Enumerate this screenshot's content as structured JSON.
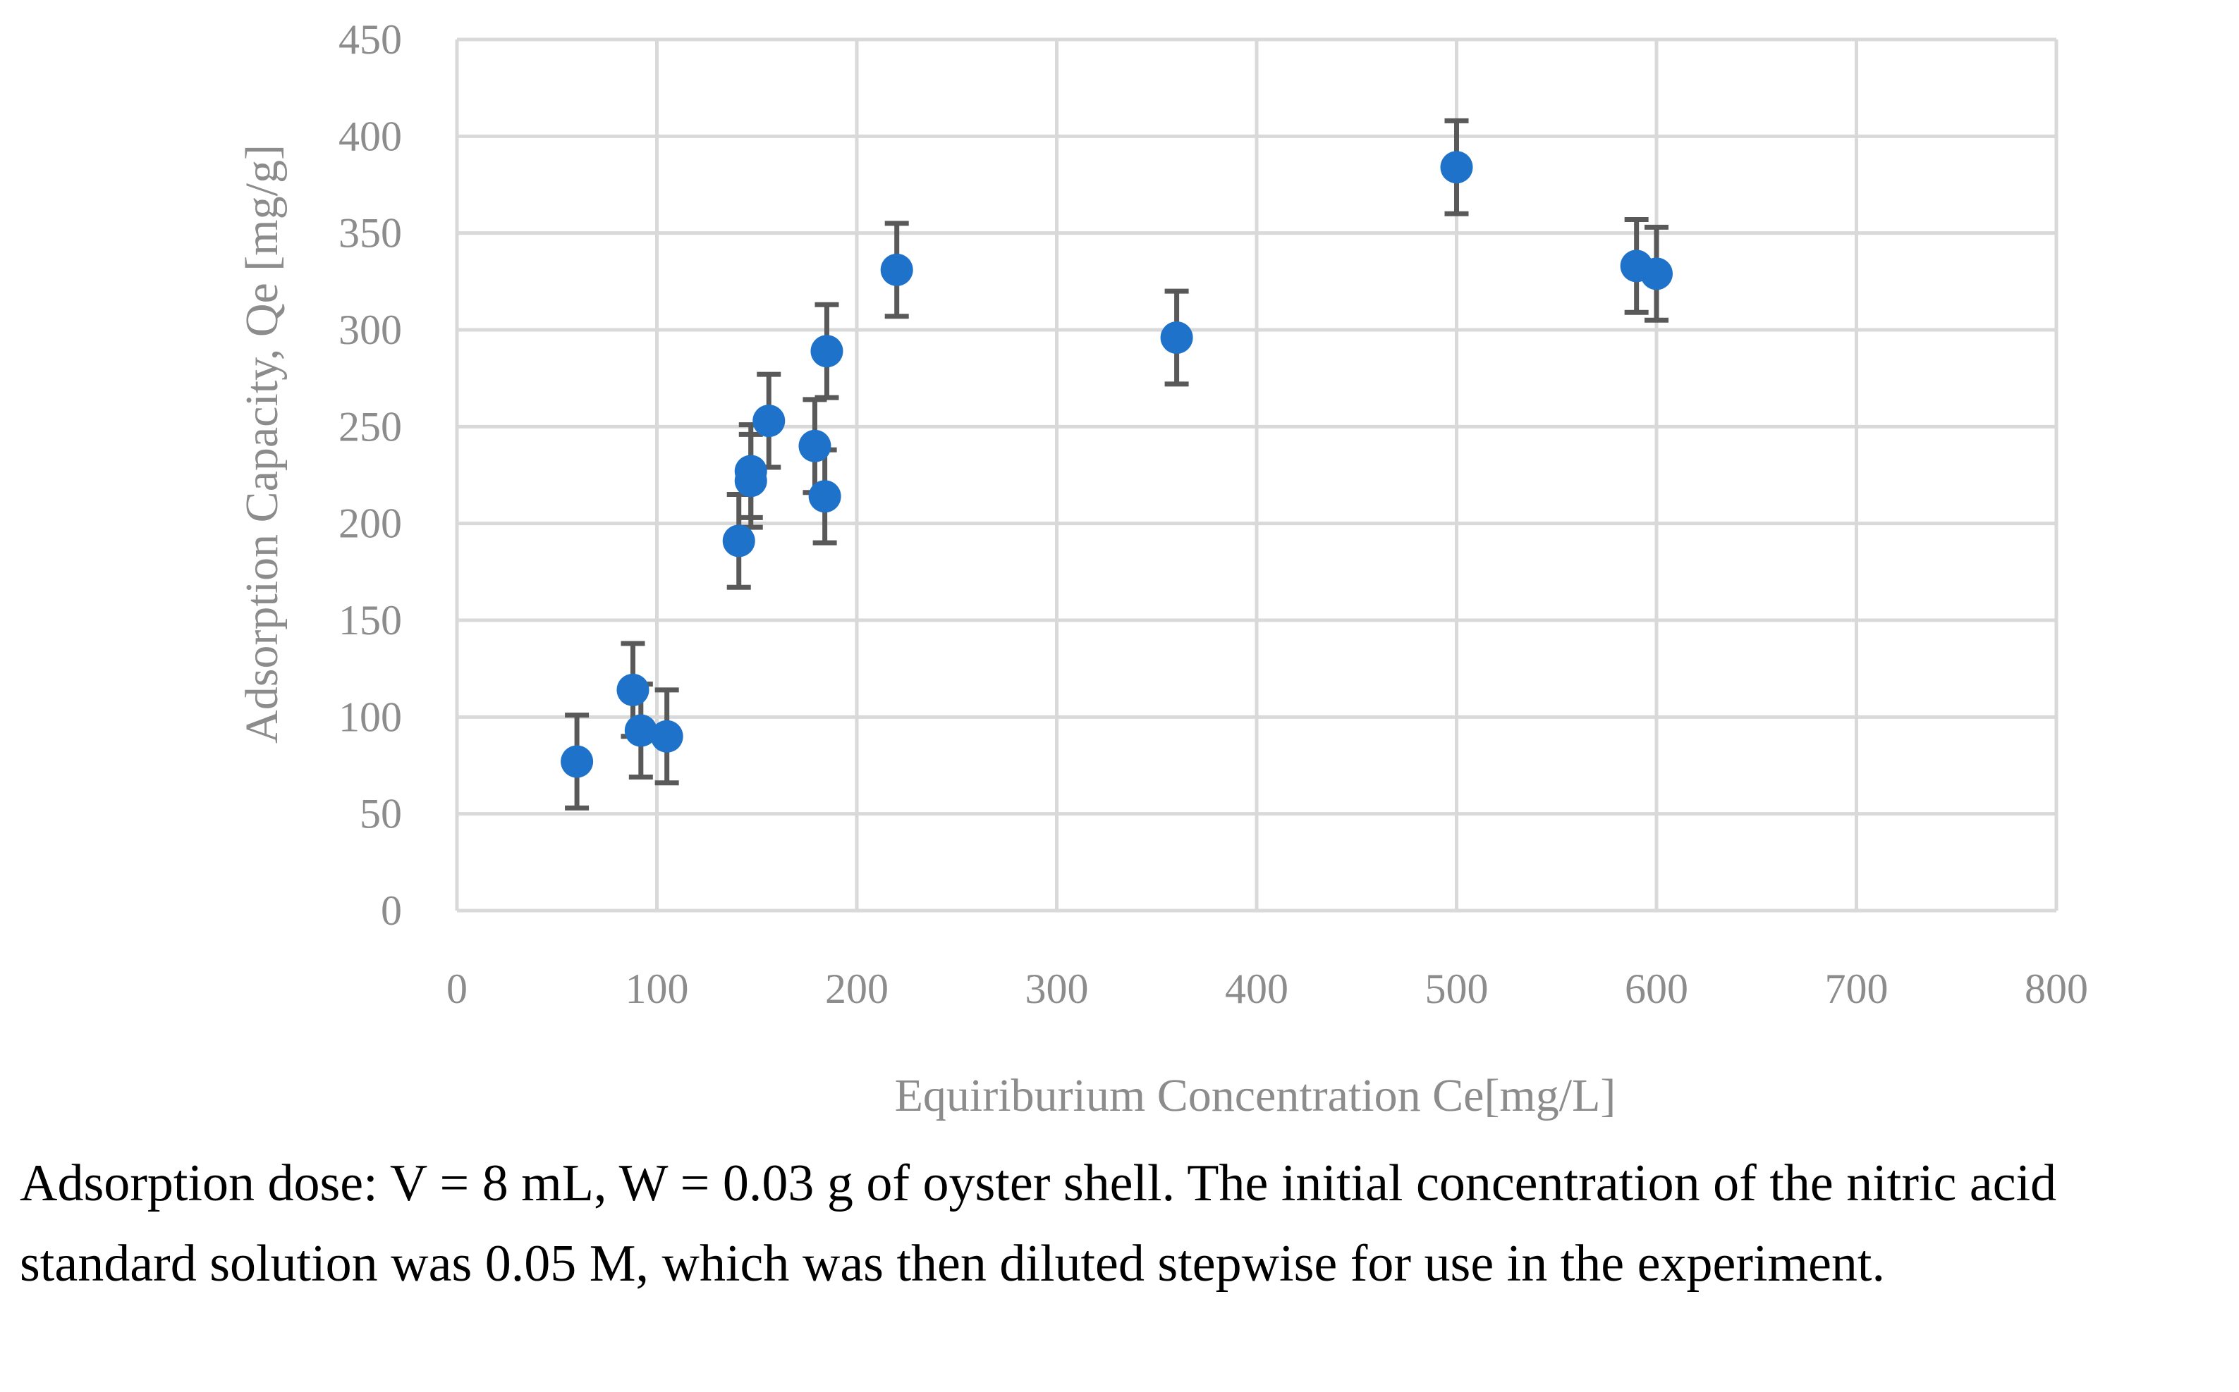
{
  "chart_data": {
    "type": "scatter",
    "title": "",
    "xlabel": "Equiriburium Concentration Ce[mg/L]",
    "ylabel": "Adsorption Capacity, Qe [mg/g]",
    "xlim": [
      0,
      800
    ],
    "ylim": [
      0,
      450
    ],
    "x_ticks": [
      0,
      100,
      200,
      300,
      400,
      500,
      600,
      700,
      800
    ],
    "y_ticks": [
      0,
      50,
      100,
      150,
      200,
      250,
      300,
      350,
      400,
      450
    ],
    "grid": true,
    "error_bar": 24,
    "series": [
      {
        "name": "Qe",
        "color": "#1f72c9",
        "points": [
          {
            "x": 60,
            "y": 77
          },
          {
            "x": 88,
            "y": 114
          },
          {
            "x": 92,
            "y": 93
          },
          {
            "x": 105,
            "y": 90
          },
          {
            "x": 141,
            "y": 191
          },
          {
            "x": 147,
            "y": 227
          },
          {
            "x": 147,
            "y": 222
          },
          {
            "x": 156,
            "y": 253
          },
          {
            "x": 179,
            "y": 240
          },
          {
            "x": 184,
            "y": 214
          },
          {
            "x": 185,
            "y": 289
          },
          {
            "x": 220,
            "y": 331
          },
          {
            "x": 360,
            "y": 296
          },
          {
            "x": 500,
            "y": 384
          },
          {
            "x": 590,
            "y": 333
          },
          {
            "x": 600,
            "y": 329
          }
        ]
      }
    ]
  },
  "colors": {
    "point": "#1f72c9",
    "error_bar": "#595959",
    "grid": "#d9d9d9",
    "tick_label": "#8c8c8c"
  },
  "note": {
    "text": "Adsorption dose: V = 8 mL, W = 0.03 g of oyster shell. The initial concentration of the nitric acid standard solution was 0.05 M, which was then diluted stepwise for use in the experiment."
  }
}
